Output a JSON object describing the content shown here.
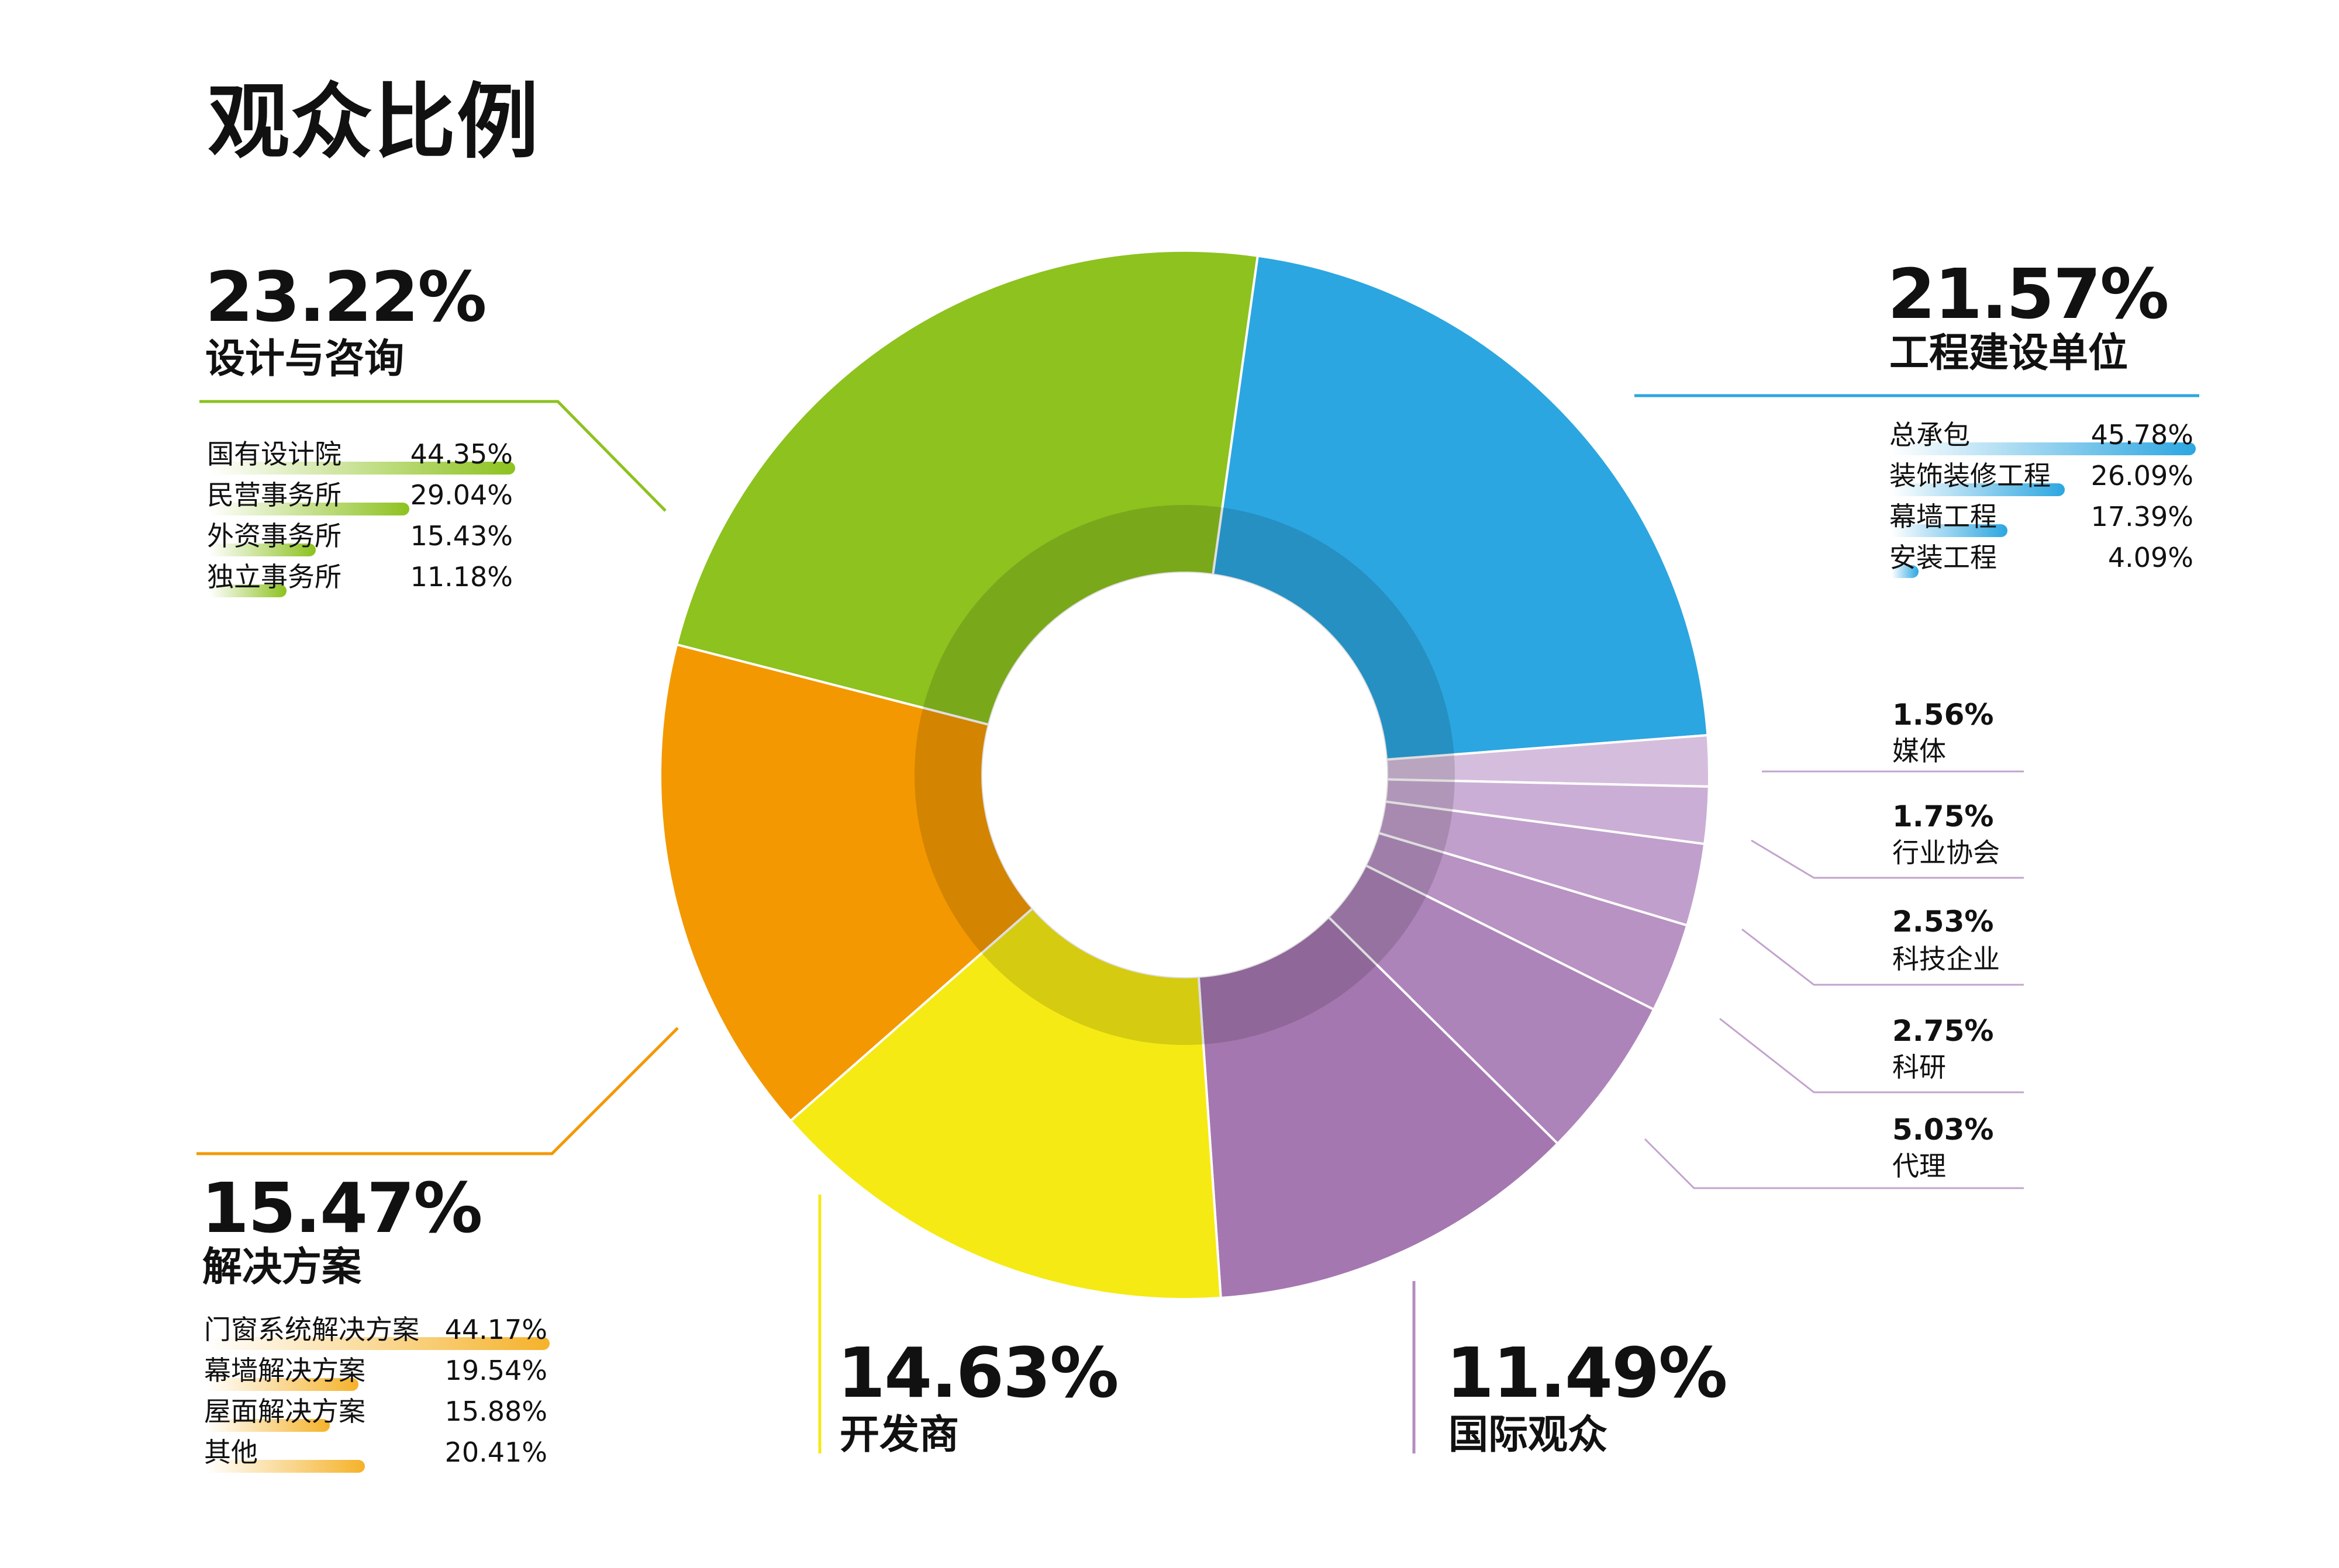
{
  "title": "观众比例",
  "colors": {
    "green": "#8dc21f",
    "blue": "#2ca6e0",
    "orange": "#f39800",
    "yellow": "#f5ea14",
    "purple": "#a575ae",
    "line_purple": "#c3a3cc"
  },
  "chart_data": {
    "type": "pie",
    "title": "观众比例",
    "donut": true,
    "slices": [
      {
        "label": "工程建设单位",
        "value": 21.57,
        "pct": "21.57%",
        "color": "#2ca6e0"
      },
      {
        "label": "媒体",
        "value": 1.56,
        "pct": "1.56%",
        "color": "#d5bedd"
      },
      {
        "label": "行业协会",
        "value": 1.75,
        "pct": "1.75%",
        "color": "#cbaed5"
      },
      {
        "label": "科技企业",
        "value": 2.53,
        "pct": "2.53%",
        "color": "#c19fcc"
      },
      {
        "label": "科研",
        "value": 2.75,
        "pct": "2.75%",
        "color": "#b792c3"
      },
      {
        "label": "代理",
        "value": 5.03,
        "pct": "5.03%",
        "color": "#ad84b9"
      },
      {
        "label": "国际观众",
        "value": 11.49,
        "pct": "11.49%",
        "color": "#a577b0"
      },
      {
        "label": "开发商",
        "value": 14.63,
        "pct": "14.63%",
        "color": "#f5ea14"
      },
      {
        "label": "解决方案",
        "value": 15.47,
        "pct": "15.47%",
        "color": "#f39800"
      },
      {
        "label": "设计与咨询",
        "value": 23.22,
        "pct": "23.22%",
        "color": "#8dc21f"
      }
    ],
    "breakdowns": {
      "design": {
        "color": "#8dc21f",
        "items": [
          {
            "label": "国有设计院",
            "value": 44.35,
            "pct": "44.35%"
          },
          {
            "label": "民营事务所",
            "value": 29.04,
            "pct": "29.04%"
          },
          {
            "label": "外资事务所",
            "value": 15.43,
            "pct": "15.43%"
          },
          {
            "label": "独立事务所",
            "value": 11.18,
            "pct": "11.18%"
          }
        ]
      },
      "construction": {
        "color": "#2ca6e0",
        "items": [
          {
            "label": "总承包",
            "value": 45.78,
            "pct": "45.78%"
          },
          {
            "label": "装饰装修工程",
            "value": 26.09,
            "pct": "26.09%"
          },
          {
            "label": "幕墙工程",
            "value": 17.39,
            "pct": "17.39%"
          },
          {
            "label": "安装工程",
            "value": 4.09,
            "pct": "4.09%"
          }
        ]
      },
      "solutions": {
        "color": "#f5b22a",
        "items": [
          {
            "label": "门窗系统解决方案",
            "value": 44.17,
            "pct": "44.17%"
          },
          {
            "label": "幕墙解决方案",
            "value": 19.54,
            "pct": "19.54%"
          },
          {
            "label": "屋面解决方案",
            "value": 15.88,
            "pct": "15.88%"
          },
          {
            "label": "其他",
            "value": 20.41,
            "pct": "20.41%"
          }
        ]
      }
    }
  }
}
